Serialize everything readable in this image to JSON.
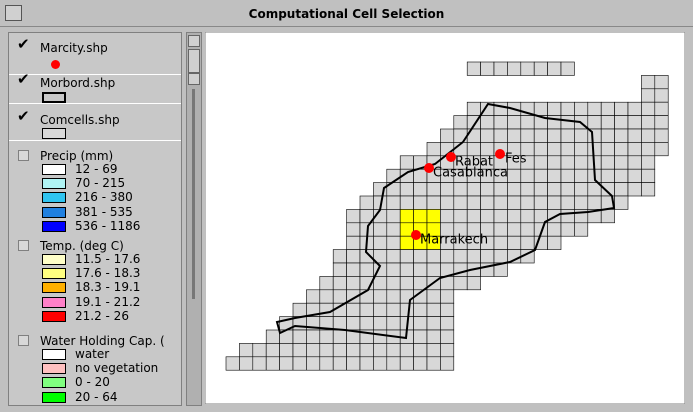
{
  "window": {
    "title": "Computational Cell Selection"
  },
  "layers": [
    {
      "name": "Marcity.shp",
      "checked": true
    },
    {
      "name": "Morbord.shp",
      "checked": true
    },
    {
      "name": "Comcells.shp",
      "checked": true
    },
    {
      "name": "Precip (mm)",
      "checked": false,
      "classes": [
        {
          "label": "12 - 69",
          "color": "#ffffff"
        },
        {
          "label": "70 - 215",
          "color": "#b0f4f4"
        },
        {
          "label": "216 - 380",
          "color": "#30c4f0"
        },
        {
          "label": "381 - 535",
          "color": "#2080e0"
        },
        {
          "label": "536 - 1186",
          "color": "#0000ff"
        }
      ]
    },
    {
      "name": "Temp. (deg C)",
      "checked": false,
      "classes": [
        {
          "label": "11.5 - 17.6",
          "color": "#ffffc8"
        },
        {
          "label": "17.6 - 18.3",
          "color": "#ffff80"
        },
        {
          "label": "18.3 - 19.1",
          "color": "#ffb000"
        },
        {
          "label": "19.1 - 21.2",
          "color": "#ff80c8"
        },
        {
          "label": "21.2 - 26",
          "color": "#ff0000"
        }
      ]
    },
    {
      "name": "Water Holding Cap. (",
      "checked": false,
      "classes": [
        {
          "label": "water",
          "color": "#ffffff"
        },
        {
          "label": "no vegetation",
          "color": "#ffc0c0"
        },
        {
          "label": "0 - 20",
          "color": "#80ff80"
        },
        {
          "label": "20 - 64",
          "color": "#00ff00"
        }
      ]
    }
  ],
  "map": {
    "cities": [
      {
        "name": "Rabat"
      },
      {
        "name": "Fes"
      },
      {
        "name": "Casablanca"
      },
      {
        "name": "Marrakech"
      }
    ]
  }
}
